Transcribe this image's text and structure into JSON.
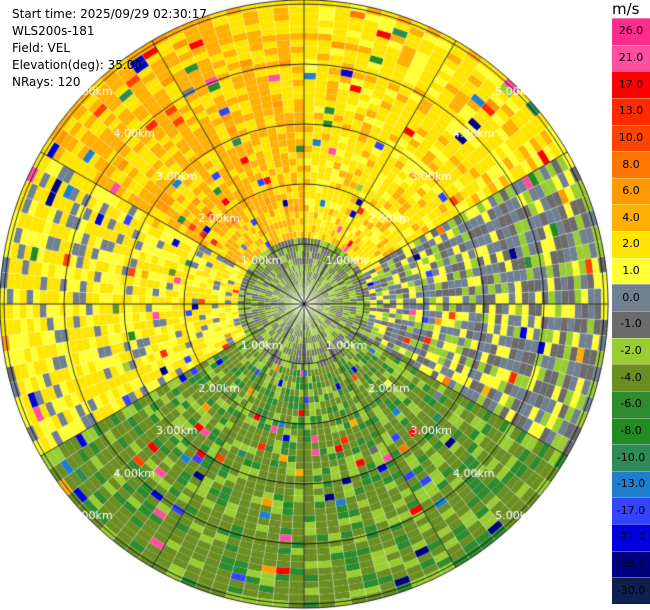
{
  "header": {
    "start_time": "Start time: 2025/09/29 02:30:17",
    "instrument": "WLS200s-181",
    "field": "Field: VEL",
    "elevation": "Elevation(deg): 35.00",
    "nrays": "NRays: 120"
  },
  "colorbar": {
    "unit": "m/s",
    "labels": [
      "26.0",
      "21.0",
      "17.0",
      "13.0",
      "10.0",
      "8.0",
      "6.0",
      "4.0",
      "2.0",
      "1.0",
      "0.0",
      "-1.0",
      "-2.0",
      "-4.0",
      "-6.0",
      "-8.0",
      "-10.0",
      "-13.0",
      "-17.0",
      "-21.0",
      "-26.0",
      "-30.0"
    ],
    "colors": [
      "#ff2c8f",
      "#ff4fa0",
      "#ff0000",
      "#ff2a00",
      "#ff4400",
      "#ff7700",
      "#ff9900",
      "#ffb000",
      "#ffe600",
      "#ffff33",
      "#708090",
      "#6b6b6b",
      "#9acd32",
      "#6b8e23",
      "#2e8b2e",
      "#228b22",
      "#2e8b57",
      "#1e7fd0",
      "#3344ff",
      "#0000dd",
      "#000080",
      "#0f1f50"
    ]
  },
  "chart_data": {
    "type": "heatmap",
    "projection": "polar PPI",
    "field": "VEL",
    "units": "m/s",
    "nrays": 120,
    "range_rings_km": [
      1.0,
      2.0,
      3.0,
      4.0,
      5.0
    ],
    "ring_labels": [
      "1.00km",
      "2.00km",
      "3.00km",
      "4.00km",
      "5.00km"
    ],
    "max_range_km": 5.6,
    "azimuth_spokes_deg": [
      0,
      30,
      60,
      90,
      120,
      150,
      180,
      210,
      240,
      270,
      300,
      330
    ],
    "sectors": [
      {
        "azimuth_deg": [
          300,
          360
        ],
        "dominant_velocity_ms": 4.5
      },
      {
        "azimuth_deg": [
          0,
          60
        ],
        "dominant_velocity_ms": 3.0
      },
      {
        "azimuth_deg": [
          60,
          120
        ],
        "dominant_velocity_ms": 0.0
      },
      {
        "azimuth_deg": [
          120,
          240
        ],
        "dominant_velocity_ms": -3.0
      },
      {
        "azimuth_deg": [
          240,
          300
        ],
        "dominant_velocity_ms": 2.0
      }
    ],
    "near_range_km": [
      0,
      1.0
    ],
    "near_range_velocity_ms": -1.5
  }
}
